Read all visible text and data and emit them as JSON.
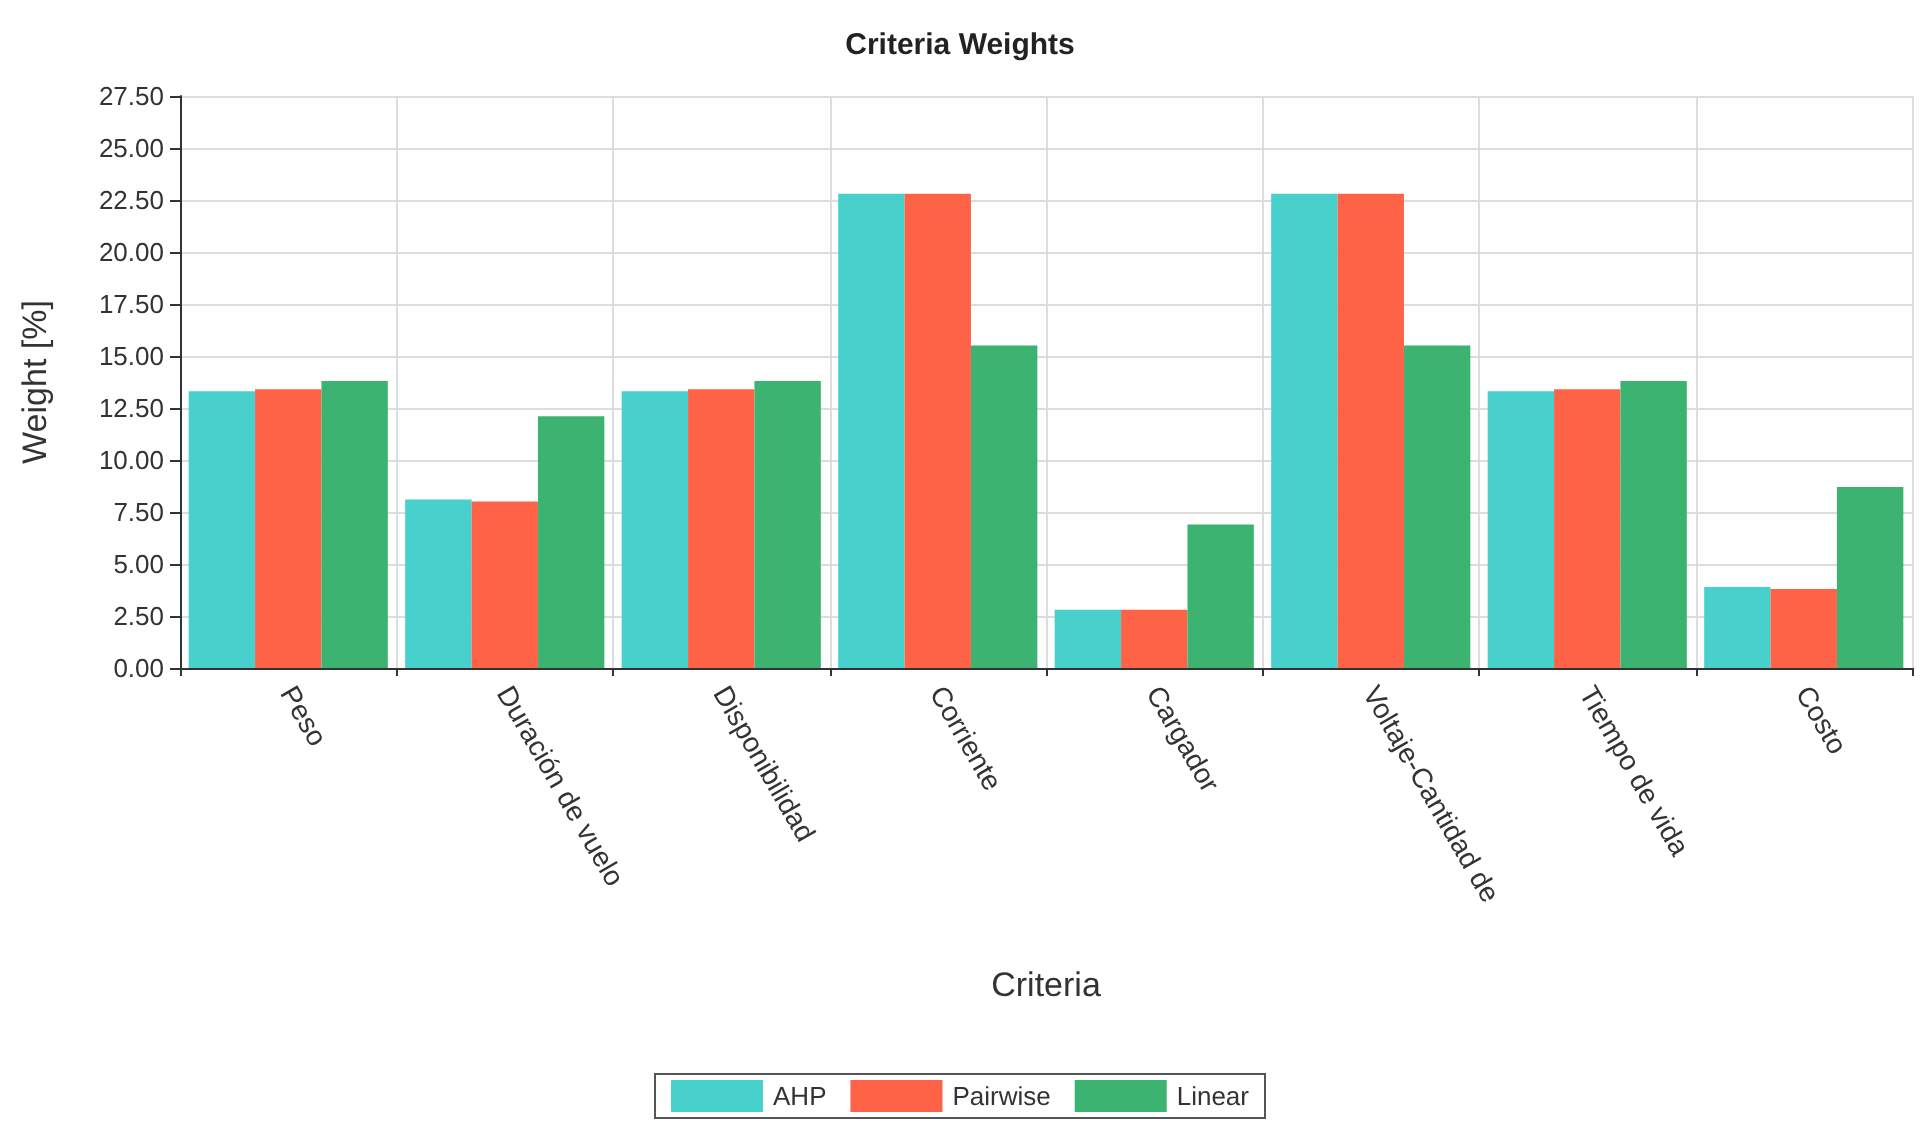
{
  "chart_data": {
    "type": "bar",
    "title": "Criteria Weights",
    "xlabel": "Criteria",
    "ylabel": "Weight [%]",
    "categories": [
      "Peso",
      "Duración de vuelo",
      "Disponibilidad",
      "Corriente",
      "Cargador",
      "Voltaje-Cantidad de",
      "Tiempo de vida",
      "Costo"
    ],
    "series": [
      {
        "name": "AHP",
        "color": "#48d1cc",
        "values": [
          13.3,
          8.1,
          13.3,
          22.8,
          2.8,
          22.8,
          13.3,
          3.9
        ]
      },
      {
        "name": "Pairwise",
        "color": "#ff6347",
        "values": [
          13.4,
          8.0,
          13.4,
          22.8,
          2.8,
          22.8,
          13.4,
          3.8
        ]
      },
      {
        "name": "Linear",
        "color": "#3cb371",
        "values": [
          13.8,
          12.1,
          13.8,
          15.5,
          6.9,
          15.5,
          13.8,
          8.7
        ]
      }
    ],
    "ylim": [
      0,
      27.5
    ],
    "yticks": [
      {
        "value": 0,
        "label": "0.00"
      },
      {
        "value": 2.5,
        "label": "2.50"
      },
      {
        "value": 5,
        "label": "5.00"
      },
      {
        "value": 7.5,
        "label": "7.50"
      },
      {
        "value": 10,
        "label": "10.00"
      },
      {
        "value": 12.5,
        "label": "12.50"
      },
      {
        "value": 15,
        "label": "15.00"
      },
      {
        "value": 17.5,
        "label": "17.50"
      },
      {
        "value": 20,
        "label": "20.00"
      },
      {
        "value": 22.5,
        "label": "22.50"
      },
      {
        "value": 25,
        "label": "25.00"
      },
      {
        "value": 27.5,
        "label": "27.50"
      }
    ],
    "grid": true,
    "legend": "bottom"
  }
}
